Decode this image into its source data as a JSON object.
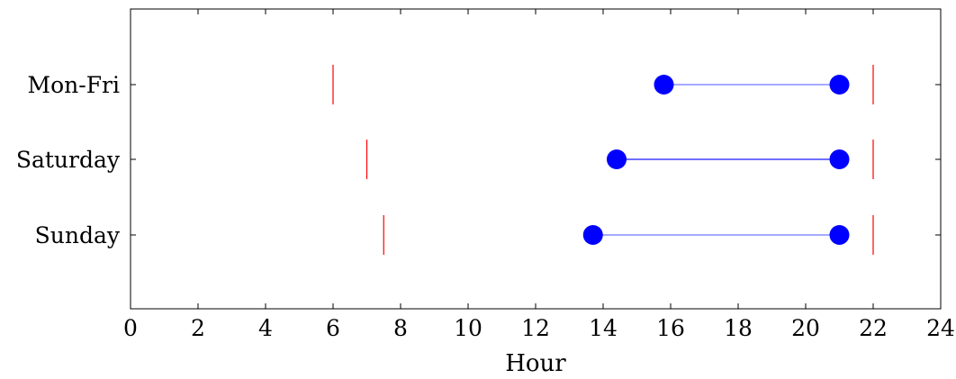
{
  "chart_data": {
    "type": "dumbbell",
    "xlabel": "Hour",
    "xlim": [
      0,
      24
    ],
    "x_ticks": [
      0,
      2,
      4,
      6,
      8,
      10,
      12,
      14,
      16,
      18,
      20,
      22,
      24
    ],
    "x_tick_labels": [
      "0",
      "2",
      "4",
      "6",
      "8",
      "10",
      "12",
      "14",
      "16",
      "18",
      "20",
      "22",
      "24"
    ],
    "categories": [
      "Mon-Fri",
      "Saturday",
      "Sunday"
    ],
    "ranges": [
      {
        "category": "Mon-Fri",
        "start": 15.8,
        "end": 21.0,
        "line_color": "#6f78ff"
      },
      {
        "category": "Saturday",
        "start": 14.4,
        "end": 21.0,
        "line_color": "#1a1aff"
      },
      {
        "category": "Sunday",
        "start": 13.7,
        "end": 21.0,
        "line_color": "#6f78ff"
      }
    ],
    "markers": [
      {
        "category": "Mon-Fri",
        "open": 6.0,
        "close": 22.0
      },
      {
        "category": "Saturday",
        "open": 7.0,
        "close": 22.0
      },
      {
        "category": "Sunday",
        "open": 7.5,
        "close": 22.0
      }
    ],
    "point_color": "#0000ff",
    "marker_color": "#ff0000",
    "grid": false
  }
}
